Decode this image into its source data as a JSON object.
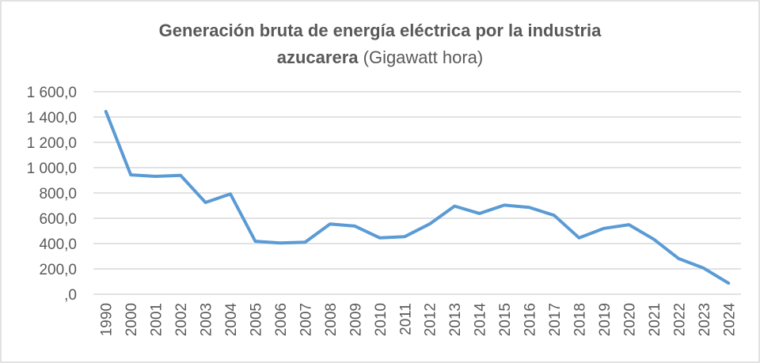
{
  "chart_data": {
    "type": "line",
    "title_bold": "Generación bruta de energía eléctrica por la industria",
    "title_line2_bold": "azucarera",
    "title_line2_normal": "(Gigawatt hora)",
    "categories": [
      "1990",
      "2000",
      "2001",
      "2002",
      "2003",
      "2004",
      "2005",
      "2006",
      "2007",
      "2008",
      "2009",
      "2010",
      "2011",
      "2012",
      "2013",
      "2014",
      "2015",
      "2016",
      "2017",
      "2018",
      "2019",
      "2020",
      "2021",
      "2022",
      "2023",
      "2024"
    ],
    "series": [
      {
        "values": [
          1444,
          943,
          931,
          939,
          725,
          792,
          418,
          405,
          411,
          555,
          538,
          445,
          455,
          555,
          696,
          638,
          704,
          686,
          623,
          445,
          520,
          549,
          434,
          281,
          206,
          87
        ]
      }
    ],
    "ylim": [
      0,
      1600
    ],
    "yticks": [
      ",0",
      "200,0",
      "400,0",
      "600,0",
      "800,0",
      "1 000,0",
      "1 200,0",
      "1 400,0",
      "1 600,0"
    ],
    "grid": true,
    "legend": "none",
    "colors": {
      "line": "#5b9bd5",
      "grid": "#d9d9d9",
      "text": "#595959"
    }
  }
}
